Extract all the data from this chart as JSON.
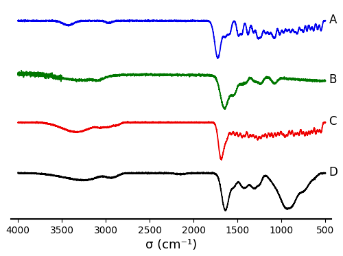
{
  "x_ticks": [
    4000,
    3500,
    3000,
    2500,
    2000,
    1500,
    1000,
    500
  ],
  "xlabel": "σ (cm⁻¹)",
  "colors": {
    "A": "#0000ee",
    "B": "#007700",
    "C": "#ee0000",
    "D": "#000000"
  },
  "label_fontsize": 12,
  "tick_fontsize": 10,
  "xlabel_fontsize": 13,
  "linewidth": 1.3
}
